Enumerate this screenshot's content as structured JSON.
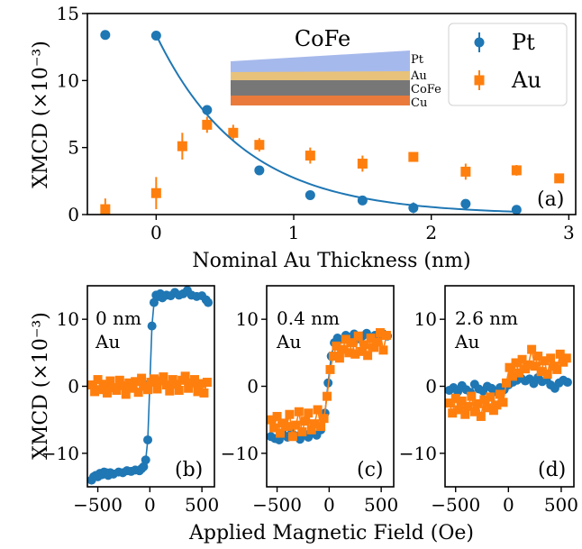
{
  "colors": {
    "pt": "#1f77b4",
    "au": "#ff7f0e",
    "stack_pt": "#a6b9ec",
    "stack_au": "#e8c27a",
    "stack_cofe": "#777777",
    "stack_cu": "#e97a3c"
  },
  "chart_data": [
    {
      "id": "a",
      "type": "scatter",
      "panel_label": "(a)",
      "title": "",
      "xlabel": "Nominal Au Thickness (nm)",
      "ylabel": "XMCD (×10⁻³)",
      "xlim": [
        -0.5,
        3.05
      ],
      "ylim": [
        0,
        15
      ],
      "xticks": [
        0,
        1,
        2,
        3
      ],
      "yticks": [
        0,
        5,
        10,
        15
      ],
      "legend": {
        "placement": "top-right",
        "entries": [
          "Pt",
          "Au"
        ]
      },
      "inset": {
        "title": "CoFe",
        "layers": [
          "Pt",
          "Au",
          "CoFe",
          "Cu"
        ]
      },
      "series": [
        {
          "name": "Pt",
          "marker": "circle",
          "x": [
            -0.37,
            0.0,
            0.37,
            0.75,
            1.12,
            1.5,
            1.87,
            2.25,
            2.62
          ],
          "y": [
            13.4,
            13.35,
            7.8,
            3.3,
            1.45,
            1.05,
            0.5,
            0.8,
            0.35
          ],
          "yerr": [
            0.2,
            0.2,
            0.3,
            0.3,
            0.2,
            0.2,
            0.4,
            0.2,
            0.2
          ]
        },
        {
          "name": "Au",
          "marker": "square",
          "x": [
            -0.37,
            0.0,
            0.19,
            0.37,
            0.56,
            0.75,
            1.12,
            1.5,
            1.87,
            2.25,
            2.62,
            2.93
          ],
          "y": [
            0.4,
            1.6,
            5.1,
            6.7,
            6.1,
            5.2,
            4.4,
            3.8,
            4.3,
            3.2,
            3.3,
            2.7
          ],
          "yerr": [
            0.8,
            1.2,
            1.0,
            0.6,
            0.6,
            0.5,
            0.6,
            0.6,
            0.3,
            0.6,
            0.4,
            0.3
          ]
        },
        {
          "name": "",
          "role": "fit",
          "model": "exponential",
          "x": [
            0.0,
            0.25,
            0.5,
            0.75,
            1.0,
            1.25,
            1.5,
            1.75,
            2.0,
            2.25,
            2.5,
            2.62
          ],
          "y": [
            13.4,
            9.0,
            6.05,
            4.06,
            2.73,
            1.83,
            1.23,
            0.83,
            0.56,
            0.37,
            0.25,
            0.21
          ]
        }
      ]
    },
    {
      "id": "b",
      "type": "scatter",
      "panel_label": "(b)",
      "annotation": [
        "0 nm",
        "Au"
      ],
      "xlabel": "",
      "ylabel": "XMCD (×10⁻³)",
      "xlim": [
        -600,
        620
      ],
      "ylim": [
        -15,
        15
      ],
      "xticks": [
        -500,
        0,
        500
      ],
      "yticks": [
        -10,
        0,
        10
      ],
      "series": [
        {
          "name": "Pt",
          "marker": "circle",
          "x": [
            -560,
            -540,
            -520,
            -500,
            -480,
            -460,
            -440,
            -420,
            -400,
            -380,
            -350,
            -300,
            -260,
            -220,
            -180,
            -140,
            -100,
            -80,
            -60,
            -40,
            -20,
            0,
            20,
            40,
            60,
            80,
            100,
            120,
            160,
            200,
            240,
            280,
            320,
            360,
            400,
            450,
            500,
            540,
            560
          ],
          "y": [
            -14.0,
            -13.5,
            -13.3,
            -13.5,
            -13.0,
            -13.2,
            -12.8,
            -12.9,
            -13.3,
            -12.9,
            -13.1,
            -12.8,
            -12.9,
            -12.6,
            -12.7,
            -12.5,
            -12.6,
            -12.3,
            -12.0,
            -11.0,
            -8.0,
            0.5,
            9.0,
            12.5,
            13.6,
            13.4,
            13.8,
            13.2,
            13.6,
            13.5,
            14.0,
            13.6,
            13.8,
            14.3,
            13.6,
            13.4,
            13.5,
            12.9,
            12.5
          ]
        },
        {
          "name": "Au",
          "marker": "square",
          "x": [
            -560,
            -530,
            -500,
            -470,
            -440,
            -410,
            -380,
            -350,
            -320,
            -290,
            -260,
            -230,
            -200,
            -170,
            -140,
            -110,
            -80,
            -50,
            -20,
            10,
            40,
            70,
            100,
            130,
            160,
            190,
            220,
            250,
            280,
            310,
            340,
            370,
            400,
            430,
            460,
            490,
            520,
            550
          ],
          "y": [
            0.2,
            -0.8,
            1.0,
            -0.5,
            0.3,
            -1.0,
            0.8,
            -0.2,
            -0.6,
            0.9,
            0.1,
            -1.2,
            0.5,
            -0.3,
            0.7,
            -0.9,
            1.2,
            0.0,
            -0.5,
            0.6,
            1.1,
            -0.4,
            0.8,
            1.4,
            0.2,
            -0.7,
            1.0,
            0.3,
            -0.6,
            0.9,
            1.5,
            -0.3,
            0.5,
            1.0,
            -0.8,
            0.4,
            -1.0,
            0.6
          ]
        }
      ]
    },
    {
      "id": "c",
      "type": "scatter",
      "panel_label": "(c)",
      "annotation": [
        "0.4 nm",
        "Au"
      ],
      "xlabel": "",
      "ylabel": "",
      "xlim": [
        -600,
        620
      ],
      "ylim": [
        -15,
        15
      ],
      "xticks": [
        -500,
        0,
        500
      ],
      "yticks": [
        -10,
        0,
        10
      ],
      "series": [
        {
          "name": "Pt",
          "marker": "circle",
          "x": [
            -560,
            -520,
            -480,
            -440,
            -400,
            -360,
            -320,
            -280,
            -240,
            -200,
            -160,
            -120,
            -80,
            -40,
            -10,
            20,
            50,
            80,
            120,
            160,
            200,
            240,
            280,
            320,
            360,
            400,
            440,
            480,
            520,
            560
          ],
          "y": [
            -7.5,
            -7.8,
            -8.0,
            -7.2,
            -7.6,
            -7.0,
            -7.4,
            -7.9,
            -7.1,
            -7.6,
            -7.0,
            -7.3,
            -6.5,
            -4.0,
            0.5,
            4.5,
            6.5,
            7.2,
            7.0,
            7.6,
            7.3,
            7.8,
            7.1,
            7.5,
            7.9,
            7.2,
            7.6,
            7.4,
            7.8,
            7.5
          ]
        },
        {
          "name": "Au",
          "marker": "square",
          "x": [
            -560,
            -530,
            -500,
            -470,
            -440,
            -410,
            -380,
            -350,
            -320,
            -290,
            -260,
            -230,
            -200,
            -170,
            -140,
            -110,
            -80,
            -50,
            -20,
            10,
            40,
            70,
            100,
            130,
            160,
            190,
            220,
            250,
            280,
            310,
            340,
            370,
            400,
            430,
            460,
            490,
            520,
            550
          ],
          "y": [
            -5.0,
            -6.2,
            -4.5,
            -7.0,
            -5.5,
            -6.0,
            -4.2,
            -7.5,
            -5.8,
            -3.8,
            -6.8,
            -5.2,
            -4.0,
            -6.5,
            -5.6,
            -3.5,
            -6.0,
            -4.8,
            -1.5,
            2.5,
            4.5,
            6.0,
            4.2,
            5.5,
            7.0,
            5.0,
            6.5,
            4.8,
            7.5,
            5.2,
            6.2,
            4.6,
            7.2,
            5.8,
            6.6,
            8.0,
            5.4,
            7.6
          ]
        }
      ]
    },
    {
      "id": "d",
      "type": "scatter",
      "panel_label": "(d)",
      "annotation": [
        "2.6 nm",
        "Au"
      ],
      "xlabel": "",
      "ylabel": "",
      "xlim": [
        -600,
        620
      ],
      "ylim": [
        -15,
        15
      ],
      "xticks": [
        -500,
        0,
        500
      ],
      "yticks": [
        -10,
        0,
        10
      ],
      "series": [
        {
          "name": "Pt",
          "marker": "circle",
          "x": [
            -560,
            -520,
            -480,
            -440,
            -400,
            -360,
            -320,
            -280,
            -240,
            -200,
            -160,
            -120,
            -80,
            -40,
            0,
            40,
            80,
            120,
            160,
            200,
            240,
            280,
            320,
            360,
            400,
            440,
            480,
            520,
            560
          ],
          "y": [
            -0.6,
            -0.2,
            -0.8,
            0.1,
            -0.5,
            -0.9,
            0.3,
            -0.4,
            -0.7,
            0.0,
            -0.3,
            -0.8,
            -0.2,
            -0.5,
            0.2,
            0.6,
            0.9,
            1.2,
            0.8,
            1.1,
            0.4,
            1.3,
            0.7,
            1.0,
            0.2,
            -0.3,
            0.5,
            0.9,
            0.6
          ]
        },
        {
          "name": "Au",
          "marker": "square",
          "x": [
            -560,
            -530,
            -500,
            -470,
            -440,
            -410,
            -380,
            -350,
            -320,
            -290,
            -260,
            -230,
            -200,
            -170,
            -140,
            -110,
            -80,
            -50,
            -20,
            10,
            40,
            70,
            100,
            130,
            160,
            190,
            220,
            250,
            280,
            310,
            340,
            370,
            400,
            430,
            460,
            490,
            520,
            550
          ],
          "y": [
            -2.5,
            -4.0,
            -1.8,
            -3.5,
            -2.2,
            -4.2,
            -3.0,
            -1.5,
            -3.8,
            -2.6,
            -4.5,
            -2.0,
            -3.2,
            -1.6,
            -3.6,
            -2.8,
            -1.2,
            -2.4,
            0.5,
            2.8,
            1.5,
            3.5,
            2.0,
            4.0,
            2.6,
            3.2,
            5.5,
            3.0,
            4.5,
            2.2,
            3.8,
            1.8,
            4.2,
            3.0,
            2.5,
            4.8,
            3.6,
            4.2
          ]
        }
      ]
    }
  ]
}
